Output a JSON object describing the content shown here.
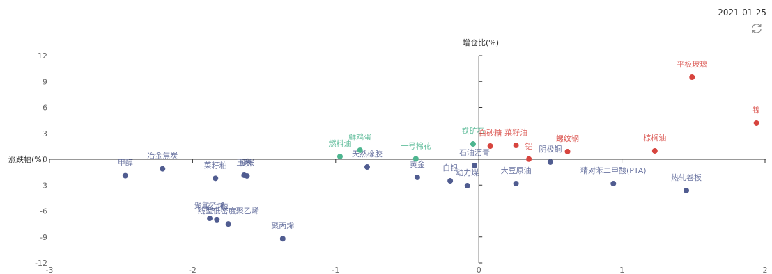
{
  "header": {
    "date": "2021-01-25",
    "refresh_icon": "refresh-icon"
  },
  "chart_data": {
    "type": "scatter",
    "title": "",
    "xlabel": "涨跌幅(%)",
    "ylabel": "增仓比(%)",
    "xlim": [
      -3,
      2
    ],
    "ylim": [
      -12,
      12
    ],
    "xticks": [
      "-3",
      "-2",
      "-1",
      "0",
      "1",
      "2"
    ],
    "yticks": [
      "12",
      "9",
      "6",
      "3",
      "0",
      "-3",
      "-6",
      "-9",
      "-12"
    ],
    "grid": false,
    "legend": "none",
    "colors": {
      "axis": "#333333",
      "tick_label": "#666666",
      "rise_increase": "#d7443e",
      "fall_increase": "#4db58f",
      "decrease": "#505c90"
    },
    "points": [
      {
        "name": "甲醇",
        "x": -2.47,
        "y": -1.9,
        "color": "#505c90"
      },
      {
        "name": "冶金焦炭",
        "x": -2.21,
        "y": -1.1,
        "color": "#505c90"
      },
      {
        "name": "菜籽粕",
        "x": -1.84,
        "y": -2.2,
        "color": "#505c90"
      },
      {
        "name": "玉米",
        "x": -1.64,
        "y": -1.85,
        "color": "#505c90"
      },
      {
        "name": "粳米",
        "x": -1.62,
        "y": -1.93,
        "color": "#505c90"
      },
      {
        "name": "聚氯乙烯",
        "x": -1.88,
        "y": -6.85,
        "color": "#505c90"
      },
      {
        "name": "乙二醇",
        "x": -1.83,
        "y": -7.0,
        "color": "#505c90"
      },
      {
        "name": "线型低密度聚乙烯",
        "x": -1.75,
        "y": -7.5,
        "color": "#505c90"
      },
      {
        "name": "聚丙烯",
        "x": -1.37,
        "y": -9.2,
        "color": "#505c90"
      },
      {
        "name": "天然橡胶",
        "x": -0.78,
        "y": -0.89,
        "color": "#505c90"
      },
      {
        "name": "黄金",
        "x": -0.43,
        "y": -2.09,
        "color": "#505c90"
      },
      {
        "name": "白银",
        "x": -0.2,
        "y": -2.5,
        "color": "#505c90"
      },
      {
        "name": "动力煤",
        "x": -0.08,
        "y": -3.06,
        "color": "#505c90"
      },
      {
        "name": "石油沥青",
        "x": -0.03,
        "y": -0.72,
        "color": "#505c90"
      },
      {
        "name": "大豆原油",
        "x": 0.26,
        "y": -2.82,
        "color": "#505c90"
      },
      {
        "name": "阴极铜",
        "x": 0.5,
        "y": -0.32,
        "color": "#505c90"
      },
      {
        "name": "精对苯二甲酸(PTA)",
        "x": 0.94,
        "y": -2.82,
        "color": "#505c90"
      },
      {
        "name": "热轧卷板",
        "x": 1.45,
        "y": -3.62,
        "color": "#505c90"
      },
      {
        "name": "燃料油",
        "x": -0.97,
        "y": 0.32,
        "color": "#4db58f"
      },
      {
        "name": "鲜鸡蛋",
        "x": -0.83,
        "y": 1.05,
        "color": "#4db58f"
      },
      {
        "name": "一号棉花",
        "x": -0.44,
        "y": 0.05,
        "color": "#4db58f"
      },
      {
        "name": "铁矿石",
        "x": -0.04,
        "y": 1.77,
        "color": "#4db58f"
      },
      {
        "name": "白砂糖",
        "x": 0.08,
        "y": 1.53,
        "color": "#d7443e"
      },
      {
        "name": "菜籽油",
        "x": 0.26,
        "y": 1.61,
        "color": "#d7443e"
      },
      {
        "name": "铝",
        "x": 0.35,
        "y": 0.02,
        "color": "#d7443e"
      },
      {
        "name": "螺纹钢",
        "x": 0.62,
        "y": 0.89,
        "color": "#d7443e"
      },
      {
        "name": "棕榈油",
        "x": 1.23,
        "y": 0.97,
        "color": "#d7443e"
      },
      {
        "name": "平板玻璃",
        "x": 1.49,
        "y": 9.5,
        "color": "#d7443e"
      },
      {
        "name": "镍",
        "x": 1.94,
        "y": 4.19,
        "color": "#d7443e"
      }
    ]
  }
}
